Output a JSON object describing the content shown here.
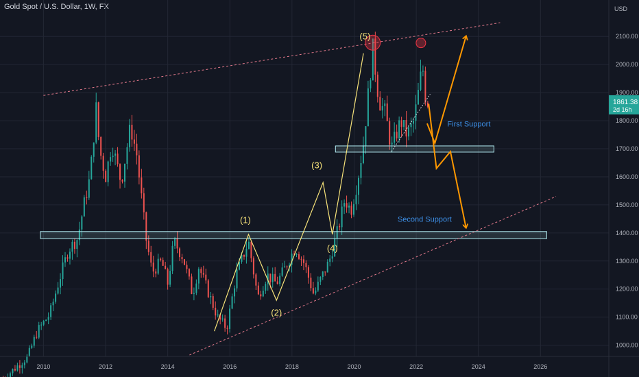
{
  "header": {
    "title": "Gold Spot / U.S. Dollar, 1W, FX"
  },
  "chart_data": {
    "type": "candlestick",
    "currency_label": "USD",
    "x_ticks": [
      "2010",
      "2012",
      "2014",
      "2016",
      "2018",
      "2020",
      "2022",
      "2024",
      "2026"
    ],
    "x_tick_years": [
      2010,
      2012,
      2014,
      2016,
      2018,
      2020,
      2022,
      2024,
      2026
    ],
    "y_ticks": [
      1000,
      1100,
      1200,
      1300,
      1400,
      1500,
      1600,
      1700,
      1800,
      1900,
      2000,
      2100
    ],
    "y_tick_labels": [
      "1000.00",
      "1100.00",
      "1200.00",
      "1300.00",
      "1400.00",
      "1500.00",
      "1600.00",
      "1700.00",
      "1800.00",
      "1900.00",
      "2000.00",
      "2100.00"
    ],
    "xlim": [
      2008.6,
      2028.2
    ],
    "ylim": [
      960,
      2230
    ],
    "price_path": [
      [
        2008.7,
        880
      ],
      [
        2009.0,
        910
      ],
      [
        2009.3,
        940
      ],
      [
        2009.5,
        960
      ],
      [
        2009.8,
        1050
      ],
      [
        2010.2,
        1110
      ],
      [
        2010.5,
        1230
      ],
      [
        2010.8,
        1340
      ],
      [
        2011.1,
        1380
      ],
      [
        2011.3,
        1500
      ],
      [
        2011.5,
        1600
      ],
      [
        2011.7,
        1850
      ],
      [
        2011.8,
        1700
      ],
      [
        2012.0,
        1600
      ],
      [
        2012.2,
        1720
      ],
      [
        2012.5,
        1580
      ],
      [
        2012.8,
        1780
      ],
      [
        2013.0,
        1680
      ],
      [
        2013.3,
        1380
      ],
      [
        2013.5,
        1260
      ],
      [
        2013.8,
        1300
      ],
      [
        2014.0,
        1220
      ],
      [
        2014.2,
        1370
      ],
      [
        2014.5,
        1310
      ],
      [
        2014.8,
        1180
      ],
      [
        2015.0,
        1280
      ],
      [
        2015.3,
        1190
      ],
      [
        2015.6,
        1100
      ],
      [
        2015.9,
        1060
      ],
      [
        2016.2,
        1250
      ],
      [
        2016.6,
        1370
      ],
      [
        2016.9,
        1170
      ],
      [
        2017.2,
        1250
      ],
      [
        2017.5,
        1220
      ],
      [
        2017.8,
        1280
      ],
      [
        2018.1,
        1350
      ],
      [
        2018.4,
        1290
      ],
      [
        2018.7,
        1180
      ],
      [
        2018.9,
        1230
      ],
      [
        2019.2,
        1300
      ],
      [
        2019.5,
        1420
      ],
      [
        2019.7,
        1520
      ],
      [
        2019.9,
        1480
      ],
      [
        2020.1,
        1580
      ],
      [
        2020.3,
        1720
      ],
      [
        2020.6,
        2060
      ],
      [
        2020.8,
        1870
      ],
      [
        2021.0,
        1830
      ],
      [
        2021.2,
        1700
      ],
      [
        2021.5,
        1800
      ],
      [
        2021.7,
        1750
      ],
      [
        2021.9,
        1790
      ],
      [
        2022.0,
        1850
      ],
      [
        2022.2,
        2000
      ],
      [
        2022.3,
        1880
      ],
      [
        2022.4,
        1861
      ]
    ],
    "current_price": {
      "label": "1861.38",
      "value": 1861.38,
      "countdown": "2d 16h"
    },
    "resistance_line": {
      "x": [
        2010.0,
        2024.7
      ],
      "y": [
        1890,
        2149
      ]
    },
    "lower_trend_line": {
      "x": [
        2014.7,
        2026.5
      ],
      "y": [
        965,
        1530
      ]
    },
    "short_trend_line": {
      "x": [
        2021.2,
        2022.45
      ],
      "y": [
        1690,
        1895
      ]
    },
    "zones": [
      {
        "name": "Second Support zone",
        "x": [
          2009.9,
          2026.2
        ],
        "y": [
          1380,
          1405
        ]
      },
      {
        "name": "First Support zone",
        "x": [
          2019.4,
          2024.5
        ],
        "y": [
          1688,
          1710
        ]
      }
    ],
    "zone_labels": [
      {
        "text": "First Support",
        "x": 2023.0,
        "y": 1780
      },
      {
        "text": "Second Support",
        "x": 2021.4,
        "y": 1440
      }
    ],
    "elliott_wave": [
      [
        2015.5,
        1050
      ],
      [
        2016.6,
        1395
      ],
      [
        2017.5,
        1160
      ],
      [
        2019.0,
        1580
      ],
      [
        2019.3,
        1395
      ],
      [
        2020.3,
        2040
      ]
    ],
    "wave_labels": [
      {
        "text": "(1)",
        "x": 2016.5,
        "y": 1435
      },
      {
        "text": "(2)",
        "x": 2017.5,
        "y": 1105
      },
      {
        "text": "(3)",
        "x": 2018.8,
        "y": 1630
      },
      {
        "text": "(4)",
        "x": 2019.3,
        "y": 1335
      },
      {
        "text": "(5)",
        "x": 2020.35,
        "y": 2090
      }
    ],
    "circles": [
      {
        "x": 2020.6,
        "y": 2078,
        "r": 11
      },
      {
        "x": 2022.15,
        "y": 2077,
        "r": 7
      }
    ],
    "projection_up": [
      [
        2022.35,
        1790
      ],
      [
        2022.6,
        1720
      ],
      [
        2023.6,
        2100
      ]
    ],
    "projection_down": [
      [
        2022.4,
        1860
      ],
      [
        2022.65,
        1630
      ],
      [
        2023.1,
        1690
      ],
      [
        2023.6,
        1420
      ]
    ]
  }
}
